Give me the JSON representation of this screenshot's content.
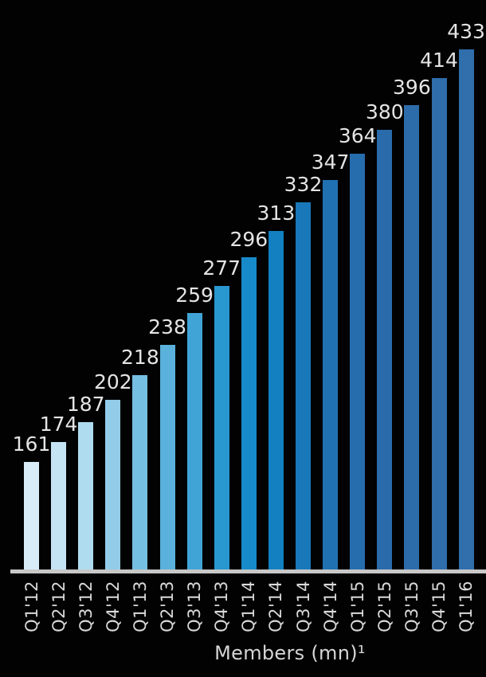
{
  "chart_data": {
    "type": "bar",
    "title": "",
    "categories": [
      "Q1'12",
      "Q2'12",
      "Q3'12",
      "Q4'12",
      "Q1'13",
      "Q2'13",
      "Q3'13",
      "Q4'13",
      "Q1'14",
      "Q2'14",
      "Q3'14",
      "Q4'14",
      "Q1'15",
      "Q2'15",
      "Q3'15",
      "Q4'15",
      "Q1'16"
    ],
    "values": [
      161,
      174,
      187,
      202,
      218,
      238,
      259,
      277,
      296,
      313,
      332,
      347,
      364,
      380,
      396,
      414,
      433
    ],
    "xlabel": "Members (mn)¹",
    "ylabel": "",
    "ylim": [
      90,
      440
    ],
    "grid": false,
    "legend_position": "none",
    "value_labels_shown": true,
    "bar_colors": [
      "#d8ecf7",
      "#c5e4f3",
      "#afdcef",
      "#92cce9",
      "#75bfe2",
      "#59b1dc",
      "#40a4d6",
      "#2997d0",
      "#178bca",
      "#1380c1",
      "#1978b9",
      "#2071b2",
      "#266dae",
      "#2a6bab",
      "#2d6caa",
      "#2f6dab",
      "#306eac"
    ]
  },
  "caption": "Members (mn)¹",
  "colors": {
    "background": "#020202",
    "axis_line": "#c8c8c8",
    "value_label_text": "#e4e4e4",
    "tick_label_text": "#d9d9d9"
  }
}
